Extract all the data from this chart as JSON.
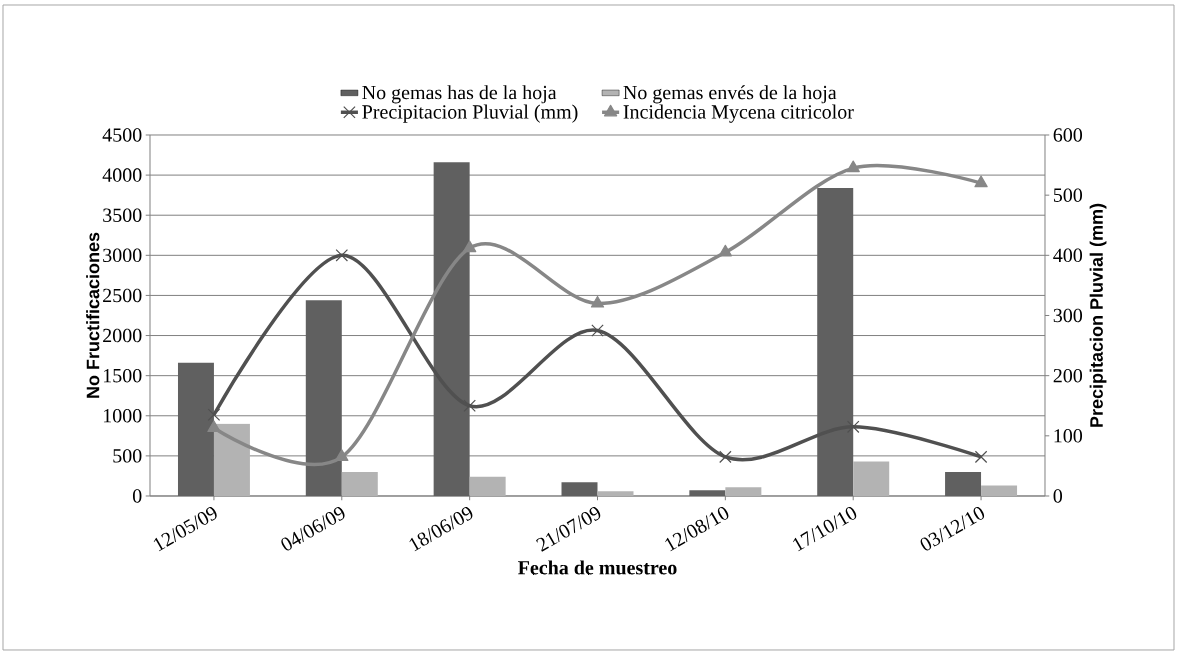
{
  "chart_data": {
    "type": "bar",
    "xlabel": "Fecha de muestreo",
    "ylabel": "No Fructificaciones",
    "y2label": "Precipitacion Pluvial (mm)",
    "categories": [
      "12/05/09",
      "04/06/09",
      "18/06/09",
      "21/07/09",
      "12/08/10",
      "17/10/10",
      "03/12/10"
    ],
    "series": [
      {
        "name": "No gemas has de la hoja",
        "color": "#606060",
        "values": [
          1660,
          2440,
          4160,
          170,
          70,
          3840,
          300
        ]
      },
      {
        "name": "No gemas envés de la hoja",
        "color": "#b3b3b3",
        "values": [
          900,
          300,
          240,
          60,
          110,
          430,
          130
        ]
      },
      {
        "name": "Precipitacion Pluvial (mm)",
        "type": "line",
        "axis": "y2",
        "marker": "cross",
        "color": "#505050",
        "values": [
          135,
          400,
          150,
          275,
          65,
          115,
          65
        ]
      },
      {
        "name": "Incidencia Mycena citricolor",
        "type": "line",
        "axis": "y2",
        "marker": "triangle",
        "color": "#878787",
        "values": [
          113,
          65,
          412,
          320,
          405,
          545,
          520
        ]
      }
    ],
    "ylim": [
      0,
      4500
    ],
    "yticks": [
      0,
      500,
      1000,
      1500,
      2000,
      2500,
      3000,
      3500,
      4000,
      4500
    ],
    "y2lim": [
      0,
      600
    ],
    "y2ticks": [
      0,
      100,
      200,
      300,
      400,
      500,
      600
    ],
    "grid": "y",
    "legend": "top"
  }
}
